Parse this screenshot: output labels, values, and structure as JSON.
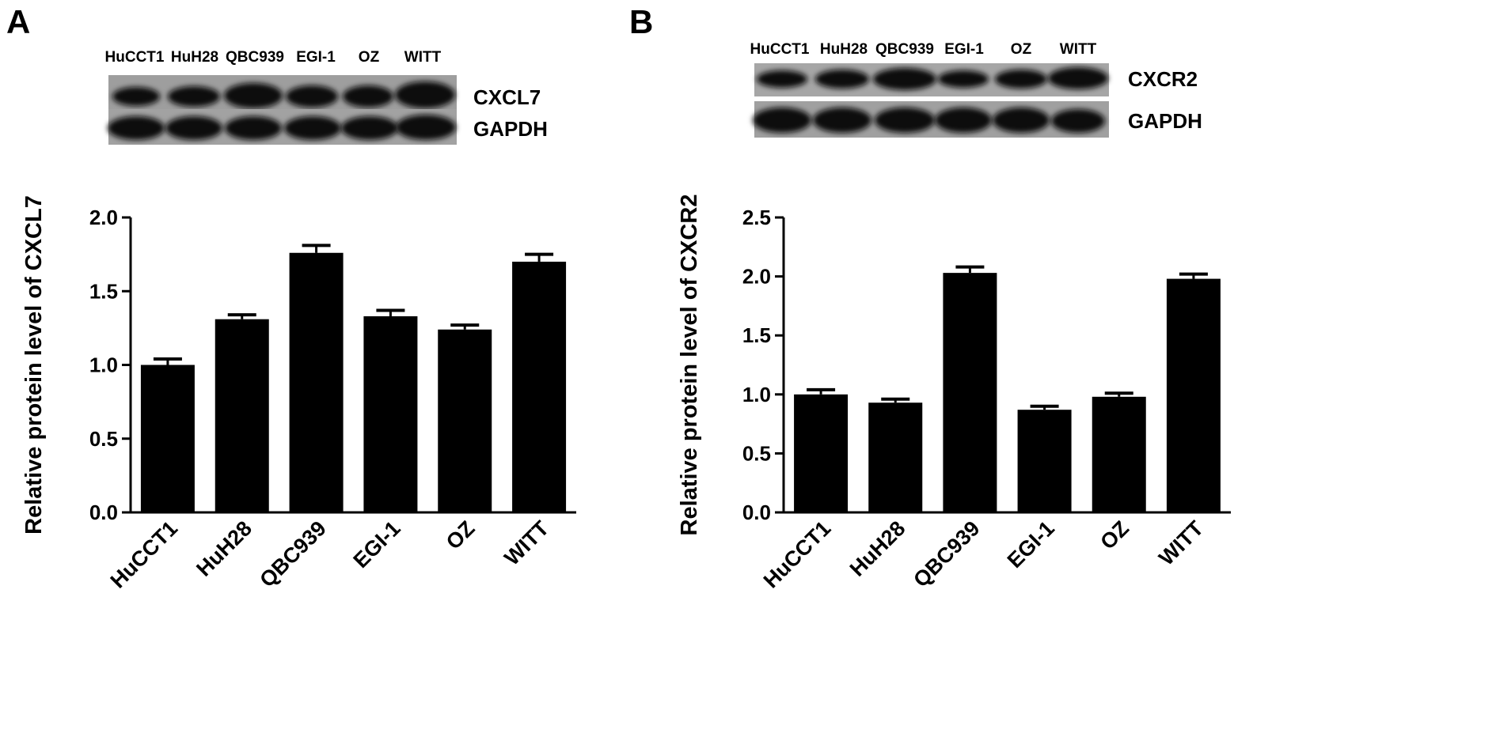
{
  "panels": [
    {
      "letter": "A",
      "blot": {
        "lanes": [
          "HuCCT1",
          "HuH28",
          "QBC939",
          "EGI-1",
          "OZ",
          "WITT"
        ],
        "rows": [
          {
            "label": "CXCL7",
            "intensity": [
              0.78,
              0.84,
              0.95,
              0.86,
              0.82,
              1.0
            ]
          },
          {
            "label": "GAPDH",
            "intensity": [
              0.95,
              0.93,
              0.95,
              0.95,
              0.96,
              0.98
            ]
          }
        ]
      }
    },
    {
      "letter": "B",
      "blot": {
        "lanes": [
          "HuCCT1",
          "HuH28",
          "QBC939",
          "EGI-1",
          "OZ",
          "WITT"
        ],
        "rows": [
          {
            "label": "CXCR2",
            "intensity": [
              0.8,
              0.85,
              0.98,
              0.78,
              0.82,
              0.94
            ]
          },
          {
            "label": "GAPDH",
            "intensity": [
              0.98,
              0.98,
              0.98,
              0.97,
              0.97,
              0.95
            ]
          }
        ]
      }
    }
  ],
  "chart_data": [
    {
      "type": "bar",
      "categories": [
        "HuCCT1",
        "HuH28",
        "QBC939",
        "EGI-1",
        "OZ",
        "WITT"
      ],
      "values": [
        1.0,
        1.31,
        1.76,
        1.33,
        1.24,
        1.7
      ],
      "errors": [
        0.04,
        0.03,
        0.05,
        0.04,
        0.03,
        0.05
      ],
      "title": "",
      "xlabel": "",
      "ylabel": "Relative protein level of CXCL7",
      "ylim": [
        0,
        2.0
      ],
      "yticks": [
        "0.0",
        "0.5",
        "1.0",
        "1.5",
        "2.0"
      ],
      "grid": false,
      "bar_color": "#000000"
    },
    {
      "type": "bar",
      "categories": [
        "HuCCT1",
        "HuH28",
        "QBC939",
        "EGI-1",
        "OZ",
        "WITT"
      ],
      "values": [
        1.0,
        0.93,
        2.03,
        0.87,
        0.98,
        1.98
      ],
      "errors": [
        0.04,
        0.03,
        0.05,
        0.03,
        0.03,
        0.04
      ],
      "title": "",
      "xlabel": "",
      "ylabel": "Relative protein level of CXCR2",
      "ylim": [
        0,
        2.5
      ],
      "yticks": [
        "0.0",
        "0.5",
        "1.0",
        "1.5",
        "2.0",
        "2.5"
      ],
      "grid": false,
      "bar_color": "#000000"
    }
  ]
}
